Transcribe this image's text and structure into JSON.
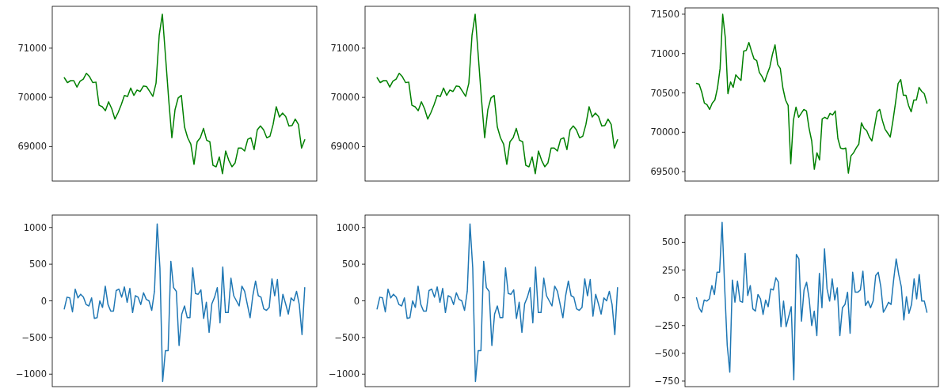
{
  "chart_data": [
    {
      "type": "line",
      "tick_labels": "y",
      "categories": [
        null,
        null,
        null,
        null,
        null,
        null,
        null,
        null,
        null,
        null,
        null,
        null,
        null,
        null,
        null,
        null,
        null,
        null,
        null,
        null,
        null,
        null,
        null,
        null,
        null,
        null,
        null,
        null,
        null,
        null,
        null,
        null,
        null,
        null,
        null,
        null,
        null,
        null,
        null,
        null,
        null,
        null,
        null,
        null,
        null,
        null,
        null,
        null,
        null,
        null,
        null,
        null,
        null,
        null,
        null,
        null,
        null,
        null,
        null,
        null,
        null,
        null,
        null,
        null,
        null,
        null,
        null,
        null,
        null,
        null,
        null,
        null,
        null,
        null,
        null,
        null,
        null
      ],
      "series": [
        {
          "color": "#008000",
          "values": [
            70400,
            70300,
            70340,
            70340,
            70210,
            70330,
            70370,
            70490,
            70420,
            70300,
            70310,
            69840,
            69810,
            69730,
            69910,
            69770,
            69560,
            69690,
            69850,
            70040,
            70020,
            70190,
            70040,
            70150,
            70120,
            70230,
            70220,
            70120,
            70020,
            70290,
            71260,
            71690,
            70830,
            69960,
            69180,
            69750,
            69990,
            70040,
            69400,
            69180,
            69050,
            68640,
            69100,
            69180,
            69370,
            69130,
            69100,
            68620,
            68590,
            68790,
            68450,
            68910,
            68720,
            68590,
            68670,
            68970,
            68970,
            68910,
            69150,
            69180,
            68940,
            69340,
            69420,
            69340,
            69180,
            69210,
            69450,
            69810,
            69600,
            69680,
            69610,
            69420,
            69430,
            69560,
            69450,
            68970,
            69140
          ]
        }
      ],
      "ylim": [
        68300,
        71850
      ],
      "yticks": [
        69000,
        70000,
        71000
      ]
    },
    {
      "type": "line",
      "tick_labels": "y",
      "categories": [
        null,
        null,
        null,
        null,
        null,
        null,
        null,
        null,
        null,
        null,
        null,
        null,
        null,
        null,
        null,
        null,
        null,
        null,
        null,
        null,
        null,
        null,
        null,
        null,
        null,
        null,
        null,
        null,
        null,
        null,
        null,
        null,
        null,
        null,
        null,
        null,
        null,
        null,
        null,
        null,
        null,
        null,
        null,
        null,
        null,
        null,
        null,
        null,
        null,
        null,
        null,
        null,
        null,
        null,
        null,
        null,
        null,
        null,
        null,
        null,
        null,
        null,
        null,
        null,
        null,
        null,
        null,
        null,
        null,
        null,
        null,
        null,
        null,
        null,
        null,
        null,
        null
      ],
      "series": [
        {
          "color": "#008000",
          "values": [
            70400,
            70300,
            70340,
            70340,
            70210,
            70330,
            70370,
            70490,
            70420,
            70300,
            70310,
            69840,
            69810,
            69730,
            69910,
            69770,
            69560,
            69690,
            69850,
            70040,
            70020,
            70190,
            70040,
            70150,
            70120,
            70230,
            70220,
            70120,
            70020,
            70290,
            71260,
            71690,
            70830,
            69960,
            69180,
            69750,
            69990,
            70040,
            69400,
            69180,
            69050,
            68640,
            69100,
            69180,
            69370,
            69130,
            69100,
            68620,
            68590,
            68790,
            68450,
            68910,
            68720,
            68590,
            68670,
            68970,
            68970,
            68910,
            69150,
            69180,
            68940,
            69340,
            69420,
            69340,
            69180,
            69210,
            69450,
            69810,
            69600,
            69680,
            69610,
            69420,
            69430,
            69560,
            69450,
            68970,
            69140
          ]
        }
      ],
      "ylim": [
        68300,
        71850
      ],
      "yticks": [
        69000,
        70000,
        71000
      ]
    },
    {
      "type": "line",
      "tick_labels": "y",
      "categories": [
        null,
        null,
        null,
        null,
        null,
        null,
        null,
        null,
        null,
        null,
        null,
        null,
        null,
        null,
        null,
        null,
        null,
        null,
        null,
        null,
        null,
        null,
        null,
        null,
        null,
        null,
        null,
        null,
        null,
        null,
        null,
        null,
        null,
        null,
        null,
        null,
        null,
        null,
        null,
        null,
        null,
        null,
        null,
        null,
        null,
        null,
        null,
        null,
        null,
        null,
        null,
        null,
        null,
        null,
        null,
        null,
        null,
        null,
        null,
        null,
        null,
        null,
        null,
        null,
        null,
        null,
        null,
        null,
        null,
        null,
        null,
        null,
        null,
        null,
        null,
        null,
        null,
        null,
        null,
        null,
        null,
        null,
        null,
        null,
        null,
        null,
        null,
        null,
        null
      ],
      "series": [
        {
          "color": "#008000",
          "values": [
            70620,
            70610,
            70510,
            70370,
            70350,
            70290,
            70370,
            70410,
            70560,
            70810,
            71500,
            71200,
            70490,
            70640,
            70570,
            70730,
            70690,
            70660,
            71030,
            71040,
            71140,
            71030,
            70930,
            70910,
            70760,
            70710,
            70640,
            70740,
            70830,
            70990,
            71110,
            70860,
            70810,
            70560,
            70410,
            70340,
            69600,
            70150,
            70320,
            70190,
            70240,
            70290,
            70270,
            70050,
            69890,
            69530,
            69740,
            69650,
            70170,
            70190,
            70170,
            70240,
            70220,
            70270,
            69920,
            69800,
            69790,
            69800,
            69480,
            69700,
            69740,
            69800,
            69850,
            70120,
            70050,
            70020,
            69940,
            69890,
            70070,
            70260,
            70290,
            70150,
            70040,
            69990,
            69940,
            70140,
            70370,
            70620,
            70670,
            70470,
            70470,
            70340,
            70260,
            70410,
            70410,
            70570,
            70520,
            70490,
            70370
          ]
        }
      ],
      "ylim": [
        69380,
        71580
      ],
      "yticks": [
        69500,
        70000,
        70500,
        71000,
        71500
      ]
    },
    {
      "type": "line",
      "tick_labels": "y",
      "categories": [
        null,
        null,
        null,
        null,
        null,
        null,
        null,
        null,
        null,
        null,
        null,
        null,
        null,
        null,
        null,
        null,
        null,
        null,
        null,
        null,
        null,
        null,
        null,
        null,
        null,
        null,
        null,
        null,
        null,
        null,
        null,
        null,
        null,
        null,
        null,
        null,
        null,
        null,
        null,
        null,
        null,
        null,
        null,
        null,
        null,
        null,
        null,
        null,
        null,
        null,
        null,
        null,
        null,
        null,
        null,
        null,
        null,
        null,
        null,
        null,
        null,
        null,
        null,
        null,
        null,
        null,
        null,
        null,
        null,
        null,
        null,
        null,
        null,
        null,
        null,
        null,
        null,
        null,
        null,
        null,
        null,
        null,
        null,
        null,
        null,
        null,
        null,
        null,
        null
      ],
      "series": [
        {
          "color": "#1f77b4",
          "values": [
            -110,
            50,
            40,
            -150,
            160,
            40,
            90,
            50,
            -50,
            -70,
            40,
            -240,
            -230,
            0,
            -90,
            200,
            -50,
            -140,
            -140,
            140,
            160,
            50,
            190,
            -20,
            170,
            -160,
            70,
            50,
            -50,
            110,
            20,
            0,
            -130,
            130,
            1050,
            450,
            -1100,
            -680,
            -680,
            540,
            180,
            130,
            -610,
            -180,
            -70,
            -230,
            -230,
            450,
            100,
            90,
            150,
            -240,
            -20,
            -430,
            -40,
            50,
            180,
            -300,
            460,
            -160,
            -160,
            310,
            70,
            0,
            -70,
            200,
            130,
            -50,
            -230,
            70,
            270,
            70,
            50,
            -110,
            -130,
            -90,
            300,
            70,
            290,
            -210,
            90,
            -40,
            -180,
            40,
            0,
            130,
            -50,
            -460,
            180
          ]
        }
      ],
      "ylim": [
        -1170,
        1170
      ],
      "yticks": [
        -1000,
        -500,
        0,
        500,
        1000
      ]
    },
    {
      "type": "line",
      "tick_labels": "y",
      "categories": [
        null,
        null,
        null,
        null,
        null,
        null,
        null,
        null,
        null,
        null,
        null,
        null,
        null,
        null,
        null,
        null,
        null,
        null,
        null,
        null,
        null,
        null,
        null,
        null,
        null,
        null,
        null,
        null,
        null,
        null,
        null,
        null,
        null,
        null,
        null,
        null,
        null,
        null,
        null,
        null,
        null,
        null,
        null,
        null,
        null,
        null,
        null,
        null,
        null,
        null,
        null,
        null,
        null,
        null,
        null,
        null,
        null,
        null,
        null,
        null,
        null,
        null,
        null,
        null,
        null,
        null,
        null,
        null,
        null,
        null,
        null,
        null,
        null,
        null,
        null,
        null,
        null,
        null,
        null,
        null,
        null,
        null,
        null,
        null,
        null,
        null,
        null,
        null,
        null
      ],
      "series": [
        {
          "color": "#1f77b4",
          "values": [
            -110,
            50,
            40,
            -150,
            160,
            40,
            90,
            50,
            -50,
            -70,
            40,
            -240,
            -230,
            0,
            -90,
            200,
            -50,
            -140,
            -140,
            140,
            160,
            50,
            190,
            -20,
            170,
            -160,
            70,
            50,
            -50,
            110,
            20,
            0,
            -130,
            130,
            1050,
            450,
            -1100,
            -680,
            -680,
            540,
            180,
            130,
            -610,
            -180,
            -70,
            -230,
            -230,
            450,
            100,
            90,
            150,
            -240,
            -20,
            -430,
            -40,
            50,
            180,
            -300,
            460,
            -160,
            -160,
            310,
            70,
            0,
            -70,
            200,
            130,
            -50,
            -230,
            70,
            270,
            70,
            50,
            -110,
            -130,
            -90,
            300,
            70,
            290,
            -210,
            90,
            -40,
            -180,
            40,
            0,
            130,
            -50,
            -460,
            180
          ]
        }
      ],
      "ylim": [
        -1170,
        1170
      ],
      "yticks": [
        -1000,
        -500,
        0,
        500,
        1000
      ]
    },
    {
      "type": "line",
      "tick_labels": "y",
      "categories": [
        null,
        null,
        null,
        null,
        null,
        null,
        null,
        null,
        null,
        null,
        null,
        null,
        null,
        null,
        null,
        null,
        null,
        null,
        null,
        null,
        null,
        null,
        null,
        null,
        null,
        null,
        null,
        null,
        null,
        null,
        null,
        null,
        null,
        null,
        null,
        null,
        null,
        null,
        null,
        null,
        null,
        null,
        null,
        null,
        null,
        null,
        null,
        null,
        null,
        null,
        null,
        null,
        null,
        null,
        null,
        null,
        null,
        null,
        null,
        null,
        null,
        null,
        null,
        null,
        null,
        null,
        null,
        null,
        null,
        null,
        null,
        null,
        null,
        null,
        null,
        null,
        null,
        null,
        null,
        null,
        null,
        null,
        null,
        null,
        null,
        null,
        null,
        null,
        null,
        null,
        null
      ],
      "series": [
        {
          "color": "#1f77b4",
          "values": [
            0,
            -90,
            -130,
            -20,
            -30,
            -10,
            110,
            30,
            230,
            230,
            680,
            90,
            -430,
            -670,
            160,
            -40,
            150,
            -30,
            -40,
            400,
            20,
            110,
            -100,
            -120,
            30,
            -10,
            -150,
            -20,
            -80,
            80,
            70,
            180,
            140,
            -260,
            -30,
            -260,
            -170,
            -80,
            -740,
            390,
            350,
            -210,
            70,
            140,
            -10,
            -250,
            -120,
            -340,
            220,
            -90,
            440,
            80,
            -30,
            170,
            -20,
            90,
            -340,
            -90,
            -60,
            50,
            -320,
            230,
            50,
            50,
            70,
            240,
            -70,
            -30,
            -90,
            -30,
            200,
            230,
            100,
            -130,
            -90,
            -40,
            -60,
            160,
            350,
            210,
            100,
            -200,
            10,
            -140,
            -60,
            170,
            -10,
            210,
            -30,
            -30,
            -130
          ]
        }
      ],
      "ylim": [
        -800,
        745
      ],
      "yticks": [
        -750,
        -500,
        -250,
        0,
        250,
        500
      ]
    }
  ]
}
